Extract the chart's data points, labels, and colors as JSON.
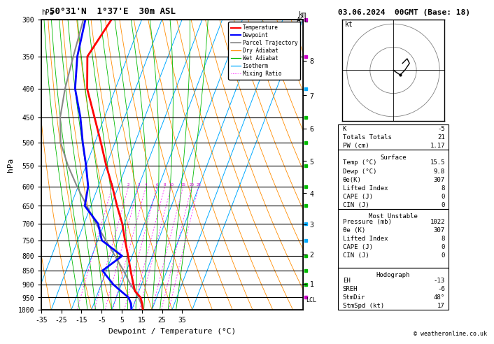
{
  "title_left": "50°31'N  1°37'E  30m ASL",
  "title_right": "03.06.2024  00GMT (Base: 18)",
  "xlabel": "Dewpoint / Temperature (°C)",
  "temp_xlim": [
    -35,
    40
  ],
  "skew_factor": 55.0,
  "pressure_levels": [
    300,
    350,
    400,
    450,
    500,
    550,
    600,
    650,
    700,
    750,
    800,
    850,
    900,
    950,
    1000
  ],
  "temp_profile": {
    "pressure": [
      1000,
      975,
      950,
      925,
      900,
      850,
      800,
      750,
      700,
      650,
      600,
      550,
      500,
      450,
      400,
      350,
      300
    ],
    "temp": [
      15.5,
      14.0,
      12.0,
      8.0,
      6.0,
      2.0,
      -2.0,
      -6.5,
      -11.0,
      -17.0,
      -23.0,
      -30.0,
      -37.0,
      -45.0,
      -54.0,
      -60.0,
      -55.0
    ]
  },
  "dewp_profile": {
    "pressure": [
      1000,
      975,
      950,
      925,
      900,
      850,
      800,
      750,
      700,
      650,
      600,
      550,
      500,
      450,
      400,
      350,
      300
    ],
    "temp": [
      9.8,
      8.5,
      6.0,
      1.0,
      -4.0,
      -12.0,
      -5.0,
      -18.0,
      -23.0,
      -33.0,
      -35.0,
      -40.0,
      -46.0,
      -52.0,
      -60.0,
      -65.0,
      -68.0
    ]
  },
  "parcel_profile": {
    "pressure": [
      1000,
      975,
      950,
      925,
      900,
      850,
      800,
      750,
      700,
      650,
      600,
      550,
      500,
      450,
      400,
      350,
      300
    ],
    "temp": [
      15.5,
      13.5,
      11.0,
      8.0,
      4.5,
      -1.5,
      -8.5,
      -16.0,
      -24.0,
      -32.0,
      -40.5,
      -49.0,
      -57.0,
      -62.0,
      -65.0,
      -67.0,
      -69.0
    ]
  },
  "info_panel": {
    "K": -5,
    "Totals_Totals": 21,
    "PW_cm": 1.17,
    "Surface": {
      "Temp_C": 15.5,
      "Dewp_C": 9.8,
      "theta_e_K": 307,
      "Lifted_Index": 8,
      "CAPE_J": 0,
      "CIN_J": 0
    },
    "Most_Unstable": {
      "Pressure_mb": 1022,
      "theta_e_K": 307,
      "Lifted_Index": 8,
      "CAPE_J": 0,
      "CIN_J": 0
    },
    "Hodograph": {
      "EH": -13,
      "SREH": -6,
      "StmDir_deg": 48,
      "StmSpd_kt": 17
    }
  },
  "lcl_pressure": 960,
  "mixing_ratio_lines": [
    1,
    2,
    3,
    4,
    6,
    8,
    10,
    15,
    20,
    25
  ],
  "km_levels": [
    1,
    2,
    3,
    4,
    5,
    6,
    7,
    8
  ],
  "p_from_km": {
    "1": 898,
    "2": 795,
    "3": 701,
    "4": 617,
    "5": 540,
    "6": 472,
    "7": 411,
    "8": 356
  }
}
